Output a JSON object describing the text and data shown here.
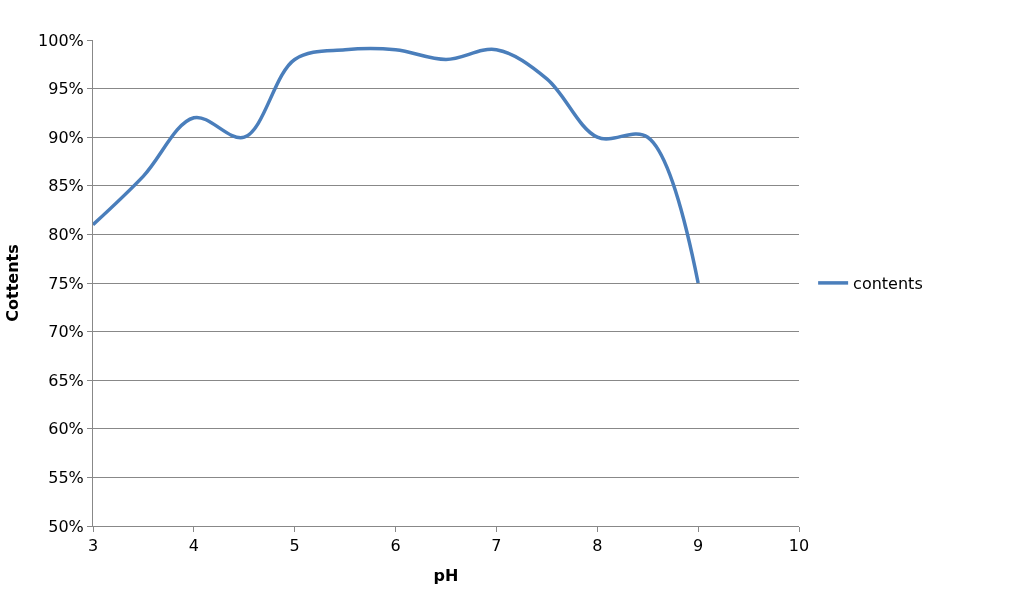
{
  "chart_data": {
    "type": "line",
    "xlabel": "pH",
    "ylabel": "Cottents",
    "x": [
      3,
      3.5,
      4,
      4.5,
      5,
      5.5,
      6,
      6.5,
      7,
      7.5,
      8,
      8.5,
      9
    ],
    "series": [
      {
        "name": "contents",
        "color": "#4a7ebb",
        "values": [
          81,
          86,
          92,
          90,
          98,
          99,
          99,
          98,
          99,
          96,
          90,
          90,
          75
        ]
      }
    ],
    "xlim": [
      3,
      10
    ],
    "xticks": [
      3,
      4,
      5,
      6,
      7,
      8,
      9,
      10
    ],
    "ylim": [
      50,
      100
    ],
    "yticks": [
      {
        "value": 50,
        "label": "50%"
      },
      {
        "value": 55,
        "label": "55%"
      },
      {
        "value": 60,
        "label": "60%"
      },
      {
        "value": 65,
        "label": "65%"
      },
      {
        "value": 70,
        "label": "70%"
      },
      {
        "value": 75,
        "label": "75%"
      },
      {
        "value": 80,
        "label": "80%"
      },
      {
        "value": 85,
        "label": "85%"
      },
      {
        "value": 90,
        "label": "90%"
      },
      {
        "value": 95,
        "label": "95%"
      },
      {
        "value": 100,
        "label": "100%"
      }
    ],
    "grid": "y",
    "legend": "right",
    "marker": "none",
    "line_style": "solid"
  }
}
